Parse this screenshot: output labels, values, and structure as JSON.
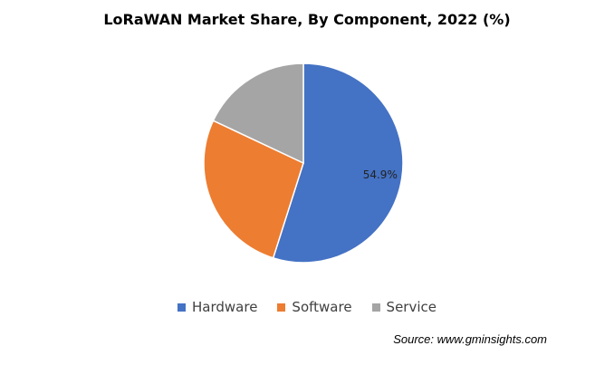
{
  "chart_data": {
    "type": "pie",
    "title": "LoRaWAN Market Share, By Component, 2022 (%)",
    "categories": [
      "Hardware",
      "Software",
      "Service"
    ],
    "values": [
      54.9,
      27.1,
      18.0
    ],
    "data_labels": [
      "54.9%",
      "",
      ""
    ],
    "colors": [
      "#4472C4",
      "#ED7D31",
      "#A5A5A5"
    ],
    "legend_position": "bottom"
  },
  "source": "Source: www.gminsights.com"
}
